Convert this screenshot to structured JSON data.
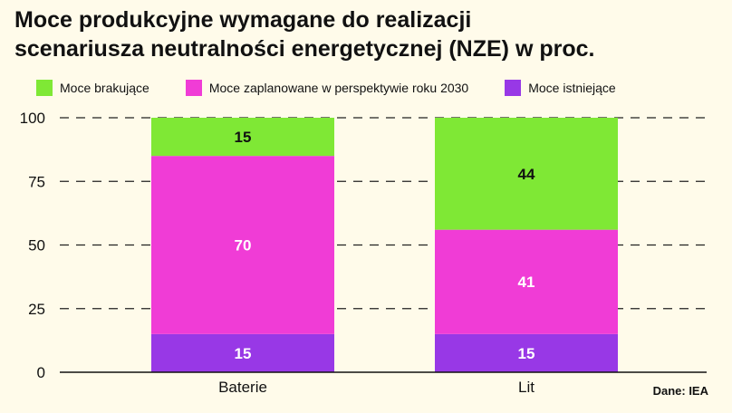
{
  "title_lines": [
    "Moce produkcyjne wymagane do realizacji",
    "scenariusza neutralności energetycznej (NZE) w proc."
  ],
  "source": "Dane: IEA",
  "colors": {
    "missing": "#7fe835",
    "planned": "#f03cd6",
    "existing": "#9838e6",
    "background": "#fffbea"
  },
  "chart_data": {
    "type": "bar",
    "stacked": true,
    "categories": [
      "Baterie",
      "Lit"
    ],
    "series": [
      {
        "name": "Moce istniejące",
        "color": "#9838e6",
        "values": [
          15,
          15
        ]
      },
      {
        "name": "Moce zaplanowane w perspektywie roku 2030",
        "color": "#f03cd6",
        "values": [
          70,
          41
        ]
      },
      {
        "name": "Moce brakujące",
        "color": "#7fe835",
        "values": [
          15,
          44
        ]
      }
    ],
    "legend": [
      {
        "label": "Moce brakujące",
        "color": "#7fe835"
      },
      {
        "label": "Moce zaplanowane w perspektywie roku 2030",
        "color": "#f03cd6"
      },
      {
        "label": "Moce istniejące",
        "color": "#9838e6"
      }
    ],
    "legend_position": "top",
    "yticks": [
      0,
      25,
      50,
      75,
      100
    ],
    "ylim": [
      0,
      100
    ],
    "grid": true,
    "xlabel": "",
    "ylabel": ""
  }
}
